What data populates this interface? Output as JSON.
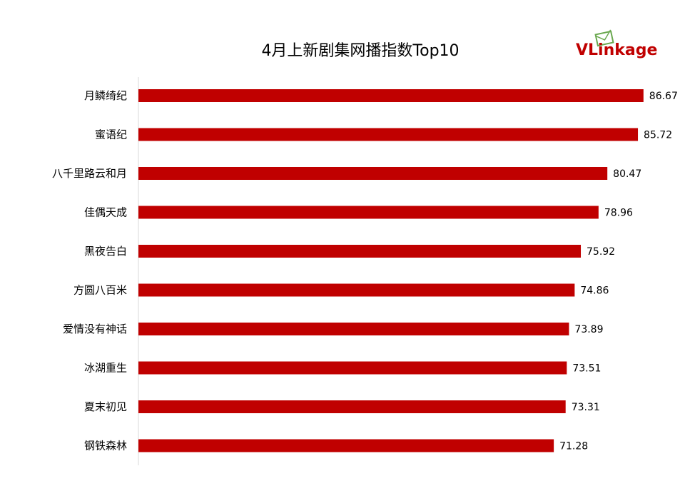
{
  "chart_data": {
    "type": "bar",
    "orientation": "horizontal",
    "title": "4月上新剧集网播指数Top10",
    "categories": [
      "月鳞绮纪",
      "蜜语纪",
      "八千里路云和月",
      "佳偶天成",
      "黑夜告白",
      "方圆八百米",
      "爱情没有神话",
      "冰湖重生",
      "夏末初见",
      "钢铁森林"
    ],
    "values": [
      86.67,
      85.72,
      80.47,
      78.96,
      75.92,
      74.86,
      73.89,
      73.51,
      73.31,
      71.28
    ],
    "value_labels": [
      "86.67",
      "85.72",
      "80.47",
      "78.96",
      "75.92",
      "74.86",
      "73.89",
      "73.51",
      "73.31",
      "71.28"
    ],
    "xlim": [
      0,
      90
    ],
    "grid": false,
    "bar_color": "#c00000",
    "axis_color": "#d9d9d9"
  },
  "logo": {
    "text_v": "V",
    "text_link": "Link",
    "text_age": "age",
    "color_v": "#c00000",
    "color_link": "#c00000",
    "color_age": "#c00000",
    "icon_color": "#6aa84f"
  }
}
